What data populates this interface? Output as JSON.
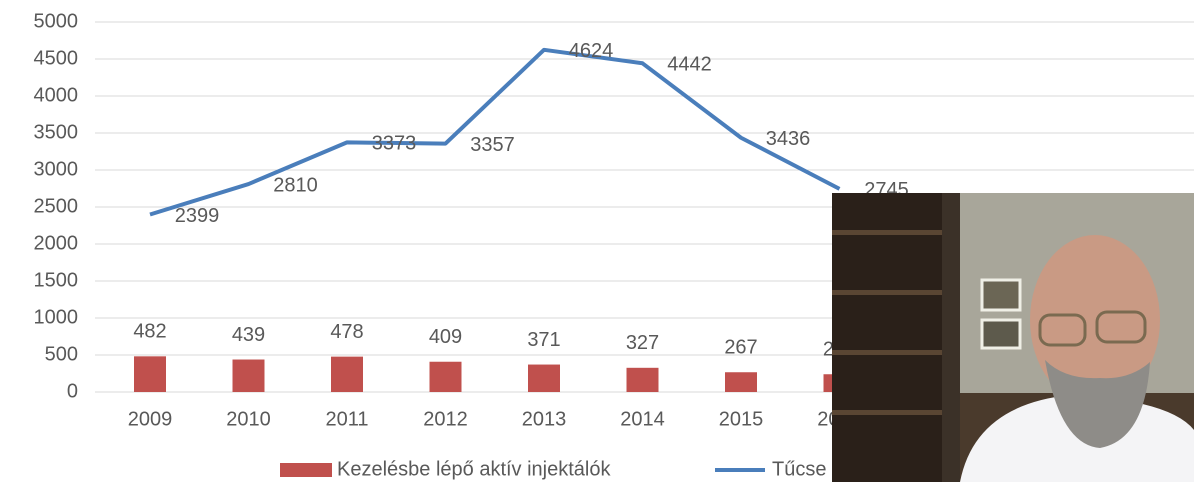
{
  "chart_data": {
    "type": "bar-line",
    "categories": [
      "2009",
      "2010",
      "2011",
      "2012",
      "2013",
      "2014",
      "2015",
      "2016"
    ],
    "series": [
      {
        "name": "Kezelésbe lépő aktív injektálók",
        "type": "bar",
        "color": "#c0504d",
        "values": [
          482,
          439,
          478,
          409,
          371,
          327,
          267,
          240
        ]
      },
      {
        "name": "Tűcse",
        "type": "line",
        "color": "#4a7ebb",
        "values": [
          2399,
          2810,
          3373,
          3357,
          4624,
          4442,
          3436,
          2745
        ]
      }
    ],
    "ylim": [
      0,
      5000
    ],
    "yticks": [
      0,
      500,
      1000,
      1500,
      2000,
      2500,
      3000,
      3500,
      4000,
      4500,
      5000
    ],
    "grid": true,
    "legend": "bottom"
  }
}
